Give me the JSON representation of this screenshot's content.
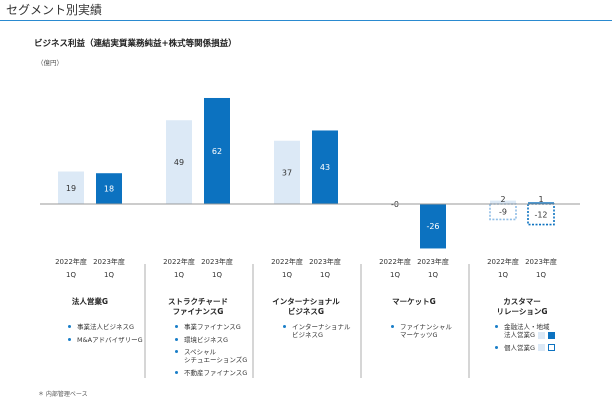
{
  "page_title": "セグメント別実績",
  "chart_data": {
    "type": "bar",
    "title": "ビジネス利益（連結実質業務純益+株式等関係損益）",
    "unit": "（億円）",
    "period_labels": [
      "2022年度\n1Q",
      "2023年度\n1Q"
    ],
    "segments": [
      {
        "name": "法人営業G",
        "values": [
          19,
          18
        ],
        "items": [
          "事業法人ビジネスG",
          "M&AアドバイザリーG"
        ]
      },
      {
        "name": "ストラクチャード\nファイナンスG",
        "values": [
          49,
          62
        ],
        "items": [
          "事業ファイナンスG",
          "環境ビジネスG",
          "スペシャル\nシチュエーションズG",
          "不動産ファイナンスG"
        ]
      },
      {
        "name": "インターナショナル\nビジネスG",
        "values": [
          37,
          43
        ],
        "items": [
          "インターナショナル\nビジネスG"
        ]
      },
      {
        "name": "マーケットG",
        "values": [
          -0.3,
          -26
        ],
        "value_labels": [
          "-0",
          "-26"
        ],
        "items": [
          "ファイナンシャル\nマーケッツG"
        ]
      },
      {
        "name": "カスタマー\nリレーションG",
        "values": [
          2,
          1
        ],
        "value_labels": [
          "2",
          "1"
        ],
        "sub_values": [
          -9,
          -12
        ],
        "sub_value_labels": [
          "-9",
          "-12"
        ],
        "items": [
          "金融法人・地域\n法人営業G",
          "個人営業G"
        ]
      }
    ],
    "colors": {
      "prior_year": "#dce9f6",
      "current_year": "#0c72c0",
      "axis": "#999999"
    }
  },
  "footnote": "＊ 内部管理ベース"
}
